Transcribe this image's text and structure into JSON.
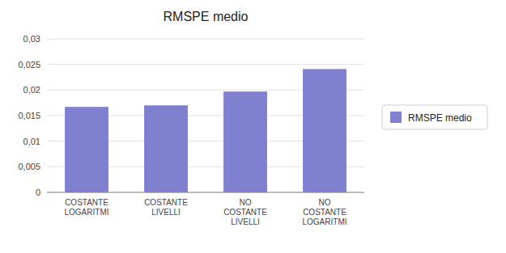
{
  "chart_data": {
    "type": "bar",
    "title": "RMSPE medio",
    "categories": [
      "COSTANTE\nLOGARITMI",
      "COSTANTE\nLIVELLI",
      "NO\nCOSTANTE\nLIVELLI",
      "NO\nCOSTANTE\nLOGARITMI"
    ],
    "series": [
      {
        "name": "RMSPE medio",
        "color": "#8080d0",
        "values": [
          0.0167,
          0.017,
          0.0197,
          0.0241
        ]
      }
    ],
    "ylim": [
      0,
      0.03
    ],
    "yticks": [
      0,
      {
        "value": 0.005,
        "label": "0,005"
      },
      {
        "value": 0.01,
        "label": "0,01"
      },
      {
        "value": 0.015,
        "label": "0,015"
      },
      {
        "value": 0.02,
        "label": "0,02"
      },
      {
        "value": 0.025,
        "label": "0,025"
      },
      {
        "value": 0.03,
        "label": "0,03"
      }
    ],
    "grid": true,
    "legend": "right"
  }
}
